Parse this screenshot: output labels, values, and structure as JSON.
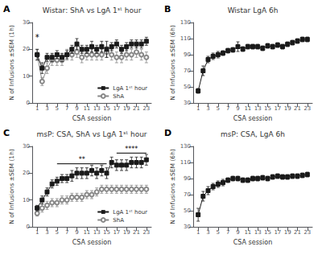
{
  "chart_data": [
    {
      "type": "line",
      "panel_label": "A",
      "title": "Wistar: ShA vs LgA 1ˢᵗ hour",
      "x_label": "CSA session",
      "y_label": "N of Infusions ±SEM (1h)",
      "x": [
        1,
        2,
        3,
        4,
        5,
        6,
        7,
        8,
        9,
        10,
        11,
        12,
        13,
        14,
        15,
        16,
        17,
        18,
        19,
        20,
        21,
        22,
        23
      ],
      "series": [
        {
          "name": "LgA 1ˢᵗ hour",
          "color": "#1a1a1a",
          "marker": "square",
          "values": [
            18,
            13,
            17,
            17,
            18,
            17,
            18,
            20,
            22,
            20,
            20,
            21,
            20,
            21,
            20,
            21,
            22,
            20,
            21,
            22,
            22,
            22,
            23
          ],
          "error": [
            2,
            2,
            1.5,
            1.5,
            1.5,
            1.5,
            1.5,
            1.5,
            2,
            1.5,
            1.5,
            2,
            1.5,
            2,
            3,
            1.5,
            1.5,
            1.5,
            1.5,
            1.5,
            1.5,
            1.5,
            1.5
          ]
        },
        {
          "name": "ShA",
          "color": "#888888",
          "marker": "open_circle",
          "values": [
            18,
            8,
            13,
            16,
            16,
            16,
            18,
            18,
            19,
            17,
            18,
            18,
            18,
            18,
            19,
            18,
            17,
            17,
            18,
            18,
            19,
            18,
            17
          ],
          "error": [
            2,
            1.5,
            2,
            2,
            2,
            2,
            2,
            2,
            2,
            2,
            2,
            2,
            2,
            2,
            2,
            2,
            2,
            2,
            2,
            2,
            2,
            2,
            2
          ]
        }
      ],
      "xlim": [
        0,
        24
      ],
      "xticks": [
        1,
        3,
        5,
        7,
        9,
        11,
        13,
        15,
        17,
        19,
        21,
        23
      ],
      "ylim": [
        0,
        30
      ],
      "yticks": [
        0,
        10,
        20,
        30
      ],
      "grid": false,
      "legend": "lower right",
      "annotations": [
        {
          "text": "*",
          "x": 1,
          "y": 23
        }
      ]
    },
    {
      "type": "line",
      "panel_label": "B",
      "title": "Wistar LgA 6h",
      "x_label": "CSA session",
      "y_label": "N of Infusions ±SEM (6h)",
      "x": [
        1,
        2,
        3,
        4,
        5,
        6,
        7,
        8,
        9,
        10,
        11,
        12,
        13,
        14,
        15,
        16,
        17,
        18,
        19,
        20,
        21,
        22,
        23
      ],
      "series": [
        {
          "color": "#1a1a1a",
          "marker": "square",
          "values": [
            45,
            70,
            84,
            88,
            90,
            92,
            95,
            96,
            100,
            97,
            100,
            100,
            100,
            98,
            101,
            100,
            102,
            100,
            103,
            105,
            107,
            109,
            109
          ],
          "error": [
            3,
            6,
            4,
            4,
            4,
            3,
            3,
            3,
            6,
            3,
            3,
            3,
            3,
            3,
            3,
            3,
            3,
            3,
            3,
            3,
            3,
            3,
            3
          ]
        }
      ],
      "xlim": [
        0,
        24
      ],
      "xticks": [
        1,
        3,
        5,
        7,
        9,
        11,
        13,
        15,
        17,
        19,
        21,
        23
      ],
      "ylim": [
        30,
        130
      ],
      "yticks": [
        30,
        50,
        70,
        90,
        110,
        130
      ],
      "grid": false
    },
    {
      "type": "line",
      "panel_label": "C",
      "title": "msP: CSA, ShA vs LgA 1ˢᵗ hour",
      "x_label": "CSA session",
      "y_label": "N of Infusions ±SEM (1h)",
      "x": [
        1,
        2,
        3,
        4,
        5,
        6,
        7,
        8,
        9,
        10,
        11,
        12,
        13,
        14,
        15,
        16,
        17,
        18,
        19,
        20,
        21,
        22,
        23
      ],
      "series": [
        {
          "name": "LgA 1ˢᵗ hour",
          "color": "#1a1a1a",
          "marker": "square",
          "values": [
            7,
            10,
            13,
            16,
            17,
            18,
            18,
            19,
            20,
            20,
            20,
            21,
            20,
            21,
            20,
            24,
            23,
            23,
            23,
            24,
            24,
            24,
            25
          ],
          "error": [
            1,
            1.5,
            1.5,
            1.5,
            1.5,
            1.5,
            1.5,
            2,
            2,
            2,
            2,
            2,
            2,
            2,
            2,
            2,
            2,
            2,
            2,
            2,
            2,
            2,
            2
          ]
        },
        {
          "name": "ShA",
          "color": "#888888",
          "marker": "open_circle",
          "values": [
            5,
            7,
            8,
            9,
            9,
            10,
            10,
            11,
            11,
            11,
            12,
            12,
            13,
            14,
            14,
            14,
            14,
            14,
            14,
            14,
            14,
            14,
            14
          ],
          "error": [
            1,
            1.5,
            1.5,
            1.5,
            1.5,
            1.5,
            1.5,
            1.5,
            1.5,
            1.5,
            1.5,
            1.5,
            1.5,
            1.5,
            1.5,
            1.5,
            1.5,
            1.5,
            1.5,
            1.5,
            1.5,
            1.5,
            1.5
          ]
        }
      ],
      "xlim": [
        0,
        24
      ],
      "xticks": [
        1,
        3,
        5,
        7,
        9,
        11,
        13,
        15,
        17,
        19,
        21,
        23
      ],
      "ylim": [
        0,
        30
      ],
      "yticks": [
        0,
        10,
        20,
        30
      ],
      "grid": false,
      "legend": "lower right",
      "annotations": [
        {
          "text": "**",
          "x": [
            5,
            15
          ],
          "y": 23.5
        },
        {
          "text": "****",
          "x": [
            17,
            23
          ],
          "y": 27.5
        }
      ]
    },
    {
      "type": "line",
      "panel_label": "D",
      "title": "msP: CSA, LgA 6h",
      "x_label": "CSA session",
      "y_label": "N of Infusions ±SEM (6h)",
      "x": [
        1,
        2,
        3,
        4,
        5,
        6,
        7,
        8,
        9,
        10,
        11,
        12,
        13,
        14,
        15,
        16,
        17,
        18,
        19,
        20,
        21,
        22,
        23
      ],
      "series": [
        {
          "color": "#1a1a1a",
          "marker": "square",
          "values": [
            45,
            68,
            75,
            80,
            83,
            85,
            88,
            90,
            90,
            88,
            88,
            90,
            90,
            91,
            90,
            92,
            93,
            92,
            92,
            93,
            93,
            94,
            95
          ],
          "error": [
            8,
            6,
            5,
            4,
            4,
            4,
            3,
            3,
            3,
            3,
            3,
            3,
            3,
            3,
            3,
            3,
            3,
            3,
            3,
            3,
            3,
            3,
            3
          ]
        }
      ],
      "xlim": [
        0,
        24
      ],
      "xticks": [
        1,
        3,
        5,
        7,
        9,
        11,
        13,
        15,
        17,
        19,
        21,
        23
      ],
      "ylim": [
        30,
        130
      ],
      "yticks": [
        30,
        50,
        70,
        90,
        110,
        130
      ],
      "grid": false
    }
  ]
}
